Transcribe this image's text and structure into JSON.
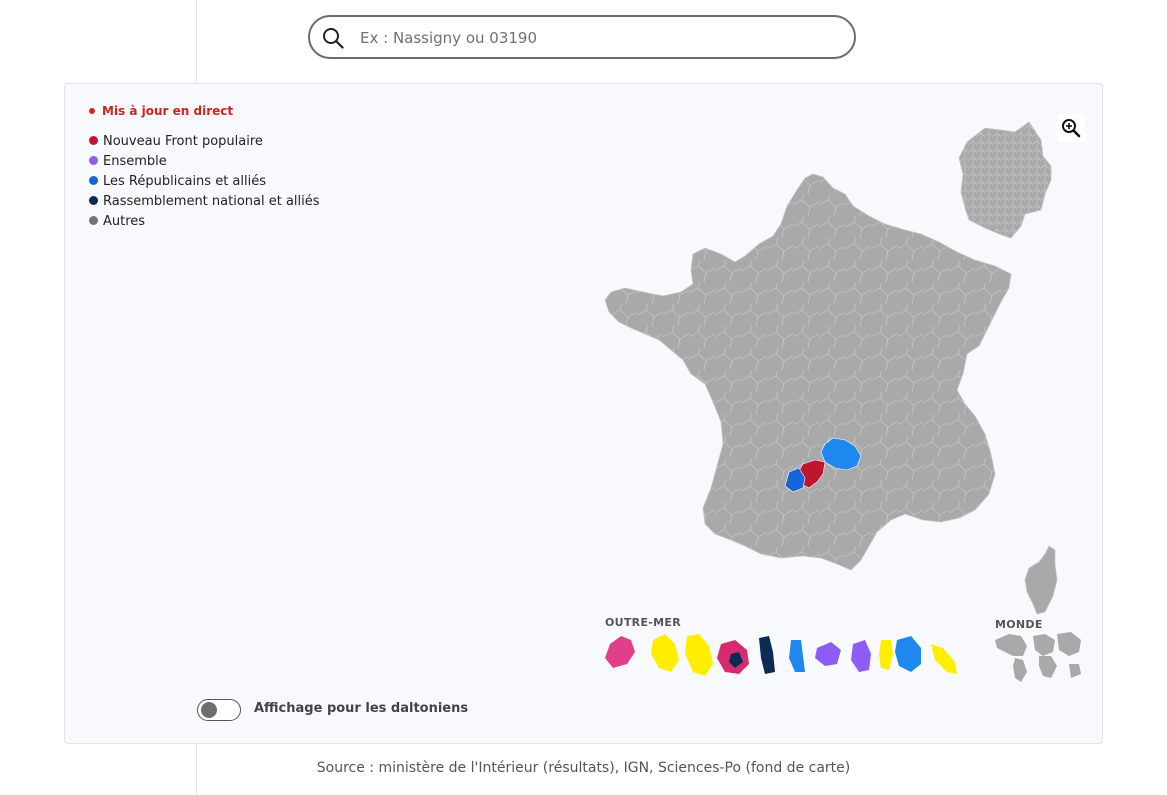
{
  "search": {
    "placeholder": "Ex : Nassigny ou 03190",
    "value": ""
  },
  "status": {
    "live_label": "Mis à jour en direct",
    "live_color": "#d1221b"
  },
  "legend": {
    "items": [
      {
        "label": "Nouveau Front populaire",
        "color": "#c0152f"
      },
      {
        "label": "Ensemble",
        "color": "#8b5cf6"
      },
      {
        "label": "Les Républicains et alliés",
        "color": "#1565d8"
      },
      {
        "label": "Rassemblement national et alliés",
        "color": "#0b2a55"
      },
      {
        "label": "Autres",
        "color": "#707477"
      }
    ]
  },
  "map": {
    "outremer_label": "OUTRE-MER",
    "monde_label": "MONDE",
    "default_color": "#a9a9a9",
    "zoom_icon": "zoom-in-icon"
  },
  "colorblind": {
    "label": "Affichage pour les daltoniens",
    "enabled": false
  },
  "footer": {
    "source": "Source : ministère de l'Intérieur (résultats), IGN, Sciences-Po (fond de carte)"
  }
}
